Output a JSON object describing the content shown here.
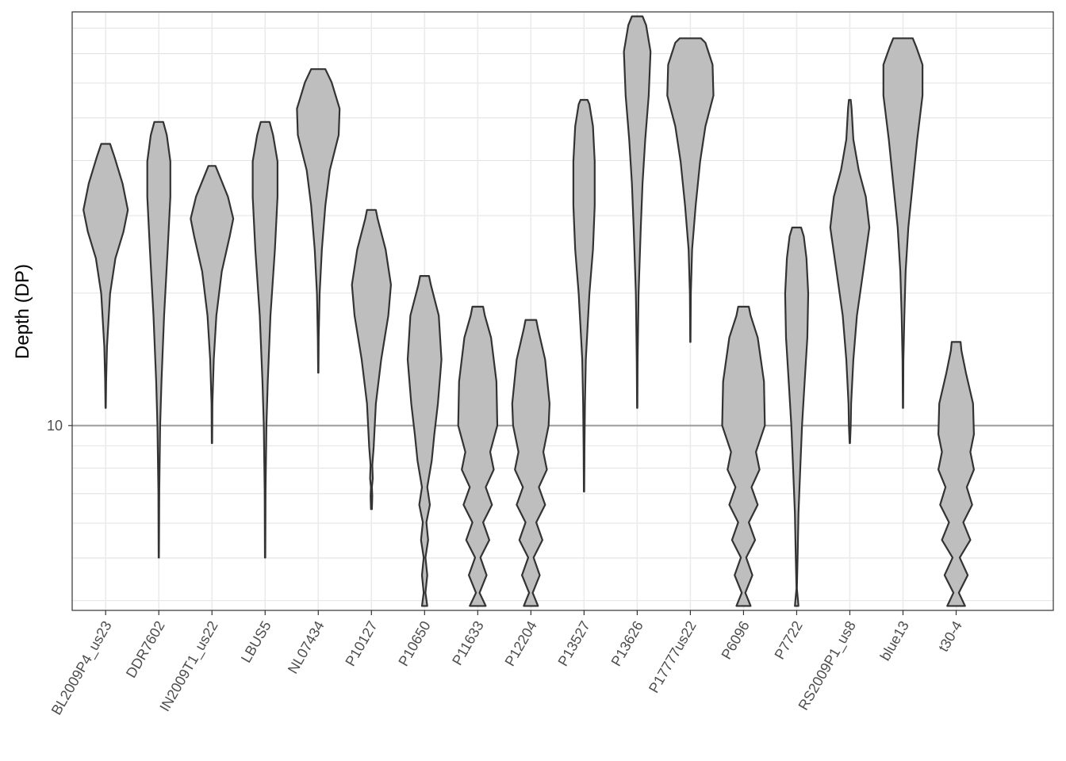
{
  "chart_data": {
    "type": "violin",
    "ylabel": "Depth (DP)",
    "y_scale": "log10",
    "y_tick_labels": [
      "10"
    ],
    "y_ticks": [
      10
    ],
    "ylim_log10": [
      0.58,
      1.94
    ],
    "grid": true,
    "fill_color": "#bebebe",
    "stroke_color": "#333333",
    "reference_line_color": "#a6a6a6",
    "categories": [
      "BL2009P4_us23",
      "DDR7602",
      "IN2009T1_us22",
      "LBUS5",
      "NL07434",
      "P10127",
      "P10650",
      "P11633",
      "P12204",
      "P13527",
      "P13626",
      "P17777us22",
      "P6096",
      "P7722",
      "RS2009P1_us8",
      "blue13",
      "t30-4"
    ],
    "violins": [
      {
        "name": "BL2009P4_us23",
        "profile": [
          [
            1.04,
            0.004
          ],
          [
            1.1,
            0.01
          ],
          [
            1.18,
            0.03
          ],
          [
            1.3,
            0.1
          ],
          [
            1.38,
            0.22
          ],
          [
            1.44,
            0.4
          ],
          [
            1.49,
            0.5
          ],
          [
            1.55,
            0.38
          ],
          [
            1.61,
            0.2
          ],
          [
            1.64,
            0.1
          ]
        ]
      },
      {
        "name": "DDR7602",
        "profile": [
          [
            0.7,
            0.004
          ],
          [
            0.85,
            0.01
          ],
          [
            1.0,
            0.03
          ],
          [
            1.1,
            0.06
          ],
          [
            1.25,
            0.12
          ],
          [
            1.4,
            0.2
          ],
          [
            1.52,
            0.26
          ],
          [
            1.6,
            0.26
          ],
          [
            1.66,
            0.18
          ],
          [
            1.69,
            0.1
          ]
        ]
      },
      {
        "name": "IN2009T1_us22",
        "profile": [
          [
            0.96,
            0.004
          ],
          [
            1.05,
            0.01
          ],
          [
            1.15,
            0.04
          ],
          [
            1.25,
            0.1
          ],
          [
            1.35,
            0.22
          ],
          [
            1.43,
            0.4
          ],
          [
            1.47,
            0.48
          ],
          [
            1.52,
            0.36
          ],
          [
            1.57,
            0.16
          ],
          [
            1.59,
            0.08
          ]
        ]
      },
      {
        "name": "LBUS5",
        "profile": [
          [
            0.7,
            0.004
          ],
          [
            0.85,
            0.01
          ],
          [
            1.0,
            0.03
          ],
          [
            1.1,
            0.06
          ],
          [
            1.25,
            0.12
          ],
          [
            1.4,
            0.22
          ],
          [
            1.52,
            0.28
          ],
          [
            1.6,
            0.28
          ],
          [
            1.66,
            0.18
          ],
          [
            1.69,
            0.1
          ]
        ]
      },
      {
        "name": "NL07434",
        "profile": [
          [
            1.12,
            0.004
          ],
          [
            1.2,
            0.01
          ],
          [
            1.3,
            0.03
          ],
          [
            1.4,
            0.08
          ],
          [
            1.5,
            0.16
          ],
          [
            1.58,
            0.26
          ],
          [
            1.66,
            0.46
          ],
          [
            1.72,
            0.48
          ],
          [
            1.78,
            0.3
          ],
          [
            1.81,
            0.16
          ]
        ]
      },
      {
        "name": "P10127",
        "profile": [
          [
            0.81,
            0.01
          ],
          [
            0.84,
            0.02
          ],
          [
            0.86,
            0.01
          ],
          [
            0.88,
            0.03
          ],
          [
            0.91,
            0.02
          ],
          [
            0.95,
            0.05
          ],
          [
            1.05,
            0.1
          ],
          [
            1.15,
            0.22
          ],
          [
            1.25,
            0.38
          ],
          [
            1.32,
            0.44
          ],
          [
            1.4,
            0.32
          ],
          [
            1.47,
            0.14
          ],
          [
            1.49,
            0.1
          ]
        ]
      },
      {
        "name": "P10650",
        "profile": [
          [
            0.59,
            0.06
          ],
          [
            0.62,
            0.02
          ],
          [
            0.66,
            0.06
          ],
          [
            0.7,
            0.02
          ],
          [
            0.74,
            0.08
          ],
          [
            0.78,
            0.04
          ],
          [
            0.82,
            0.12
          ],
          [
            0.86,
            0.06
          ],
          [
            0.92,
            0.16
          ],
          [
            0.98,
            0.22
          ],
          [
            1.05,
            0.3
          ],
          [
            1.15,
            0.38
          ],
          [
            1.25,
            0.32
          ],
          [
            1.32,
            0.14
          ],
          [
            1.34,
            0.1
          ]
        ]
      },
      {
        "name": "P11633",
        "profile": [
          [
            0.59,
            0.18
          ],
          [
            0.62,
            0.04
          ],
          [
            0.66,
            0.2
          ],
          [
            0.7,
            0.06
          ],
          [
            0.74,
            0.26
          ],
          [
            0.78,
            0.12
          ],
          [
            0.82,
            0.32
          ],
          [
            0.86,
            0.18
          ],
          [
            0.9,
            0.36
          ],
          [
            0.94,
            0.28
          ],
          [
            1.0,
            0.44
          ],
          [
            1.1,
            0.42
          ],
          [
            1.2,
            0.3
          ],
          [
            1.25,
            0.16
          ],
          [
            1.27,
            0.12
          ]
        ]
      },
      {
        "name": "P12204",
        "profile": [
          [
            0.59,
            0.16
          ],
          [
            0.62,
            0.04
          ],
          [
            0.66,
            0.2
          ],
          [
            0.7,
            0.06
          ],
          [
            0.74,
            0.26
          ],
          [
            0.78,
            0.12
          ],
          [
            0.82,
            0.32
          ],
          [
            0.86,
            0.18
          ],
          [
            0.9,
            0.36
          ],
          [
            0.94,
            0.28
          ],
          [
            1.0,
            0.4
          ],
          [
            1.05,
            0.42
          ],
          [
            1.15,
            0.32
          ],
          [
            1.22,
            0.16
          ],
          [
            1.24,
            0.12
          ]
        ]
      },
      {
        "name": "P13527",
        "profile": [
          [
            0.85,
            0.004
          ],
          [
            0.95,
            0.01
          ],
          [
            1.05,
            0.02
          ],
          [
            1.15,
            0.04
          ],
          [
            1.3,
            0.12
          ],
          [
            1.4,
            0.2
          ],
          [
            1.5,
            0.24
          ],
          [
            1.6,
            0.24
          ],
          [
            1.68,
            0.2
          ],
          [
            1.73,
            0.12
          ],
          [
            1.74,
            0.08
          ]
        ]
      },
      {
        "name": "P13626",
        "profile": [
          [
            1.04,
            0.004
          ],
          [
            1.15,
            0.01
          ],
          [
            1.3,
            0.03
          ],
          [
            1.45,
            0.08
          ],
          [
            1.55,
            0.12
          ],
          [
            1.65,
            0.18
          ],
          [
            1.75,
            0.26
          ],
          [
            1.85,
            0.3
          ],
          [
            1.91,
            0.2
          ],
          [
            1.93,
            0.12
          ]
        ]
      },
      {
        "name": "P17777us22",
        "profile": [
          [
            1.19,
            0.004
          ],
          [
            1.3,
            0.01
          ],
          [
            1.4,
            0.04
          ],
          [
            1.5,
            0.12
          ],
          [
            1.6,
            0.22
          ],
          [
            1.68,
            0.34
          ],
          [
            1.75,
            0.52
          ],
          [
            1.82,
            0.5
          ],
          [
            1.87,
            0.34
          ],
          [
            1.88,
            0.24
          ]
        ]
      },
      {
        "name": "P6096",
        "profile": [
          [
            0.59,
            0.16
          ],
          [
            0.62,
            0.04
          ],
          [
            0.66,
            0.2
          ],
          [
            0.7,
            0.06
          ],
          [
            0.74,
            0.26
          ],
          [
            0.78,
            0.12
          ],
          [
            0.82,
            0.32
          ],
          [
            0.86,
            0.18
          ],
          [
            0.9,
            0.36
          ],
          [
            0.94,
            0.28
          ],
          [
            1.0,
            0.48
          ],
          [
            1.1,
            0.46
          ],
          [
            1.2,
            0.32
          ],
          [
            1.25,
            0.16
          ],
          [
            1.27,
            0.12
          ]
        ]
      },
      {
        "name": "P7722",
        "profile": [
          [
            0.59,
            0.04
          ],
          [
            0.63,
            0.005
          ],
          [
            0.7,
            0.02
          ],
          [
            0.8,
            0.04
          ],
          [
            0.9,
            0.08
          ],
          [
            1.0,
            0.12
          ],
          [
            1.1,
            0.18
          ],
          [
            1.2,
            0.24
          ],
          [
            1.3,
            0.26
          ],
          [
            1.38,
            0.22
          ],
          [
            1.43,
            0.16
          ],
          [
            1.45,
            0.1
          ]
        ]
      },
      {
        "name": "RS2009P1_us8",
        "profile": [
          [
            0.96,
            0.004
          ],
          [
            1.0,
            0.02
          ],
          [
            1.05,
            0.03
          ],
          [
            1.15,
            0.08
          ],
          [
            1.25,
            0.16
          ],
          [
            1.35,
            0.3
          ],
          [
            1.45,
            0.44
          ],
          [
            1.52,
            0.36
          ],
          [
            1.58,
            0.2
          ],
          [
            1.65,
            0.08
          ],
          [
            1.72,
            0.04
          ],
          [
            1.74,
            0.02
          ]
        ]
      },
      {
        "name": "blue13",
        "profile": [
          [
            1.04,
            0.004
          ],
          [
            1.15,
            0.01
          ],
          [
            1.25,
            0.03
          ],
          [
            1.35,
            0.06
          ],
          [
            1.45,
            0.12
          ],
          [
            1.55,
            0.22
          ],
          [
            1.65,
            0.32
          ],
          [
            1.75,
            0.44
          ],
          [
            1.82,
            0.44
          ],
          [
            1.86,
            0.3
          ],
          [
            1.88,
            0.22
          ]
        ]
      },
      {
        "name": "t30-4",
        "profile": [
          [
            0.59,
            0.2
          ],
          [
            0.62,
            0.06
          ],
          [
            0.66,
            0.26
          ],
          [
            0.7,
            0.08
          ],
          [
            0.74,
            0.32
          ],
          [
            0.78,
            0.16
          ],
          [
            0.82,
            0.36
          ],
          [
            0.86,
            0.24
          ],
          [
            0.9,
            0.4
          ],
          [
            0.94,
            0.32
          ],
          [
            0.98,
            0.4
          ],
          [
            1.05,
            0.38
          ],
          [
            1.12,
            0.22
          ],
          [
            1.17,
            0.12
          ],
          [
            1.19,
            0.1
          ]
        ]
      }
    ]
  }
}
